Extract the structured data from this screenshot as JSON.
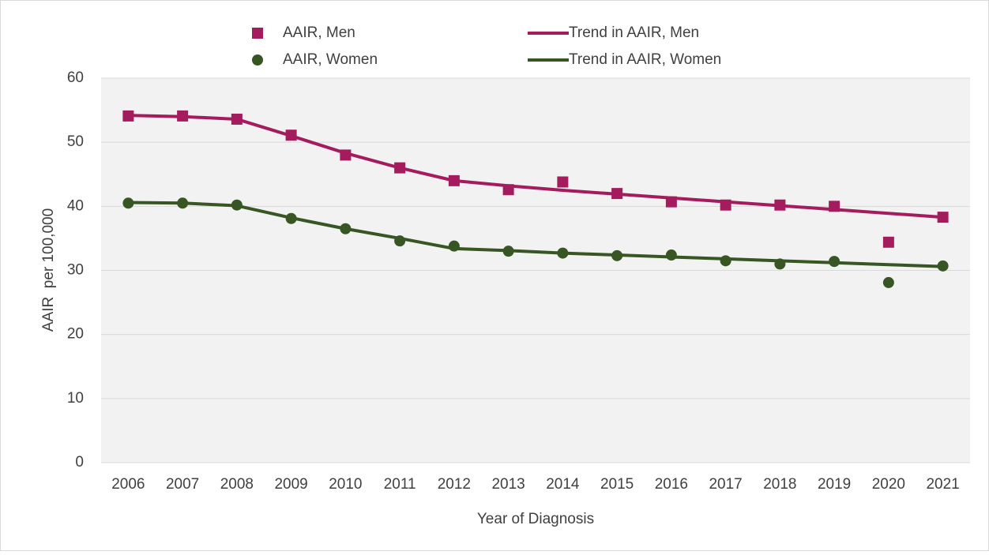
{
  "chart_data": {
    "type": "line",
    "x_label": "Year of Diagnosis",
    "y_label": "AAIR  per 100,000",
    "categories": [
      "2006",
      "2007",
      "2008",
      "2009",
      "2010",
      "2011",
      "2012",
      "2013",
      "2014",
      "2015",
      "2016",
      "2017",
      "2018",
      "2019",
      "2020",
      "2021"
    ],
    "series": [
      {
        "name": "AAIR, Men",
        "color": "#a51c5e",
        "style": "markers",
        "marker": "square",
        "values": [
          54.1,
          54.1,
          53.6,
          51.1,
          48.0,
          46.0,
          44.0,
          42.6,
          43.8,
          42.0,
          40.7,
          40.2,
          40.2,
          40.0,
          34.4,
          38.3
        ]
      },
      {
        "name": "Trend in AAIR, Men",
        "color": "#a51c5e",
        "style": "line",
        "values": [
          54.2,
          54.0,
          53.6,
          51.0,
          48.3,
          46.0,
          44.0,
          43.2,
          42.5,
          41.9,
          41.3,
          40.7,
          40.1,
          39.5,
          38.9,
          38.3
        ]
      },
      {
        "name": "AAIR, Women",
        "color": "#375623",
        "style": "markers",
        "marker": "circle",
        "values": [
          40.5,
          40.5,
          40.2,
          38.1,
          36.5,
          34.6,
          33.8,
          33.0,
          32.7,
          32.3,
          32.4,
          31.5,
          31.0,
          31.4,
          28.1,
          30.7
        ]
      },
      {
        "name": "Trend in AAIR, Women",
        "color": "#375623",
        "style": "line",
        "values": [
          40.6,
          40.5,
          40.1,
          38.2,
          36.5,
          35.0,
          33.4,
          33.1,
          32.7,
          32.4,
          32.1,
          31.8,
          31.5,
          31.2,
          30.9,
          30.6
        ]
      }
    ],
    "ylim": [
      0,
      60
    ],
    "yticks": [
      0,
      10,
      20,
      30,
      40,
      50,
      60
    ],
    "grid": true,
    "legend": "top"
  }
}
